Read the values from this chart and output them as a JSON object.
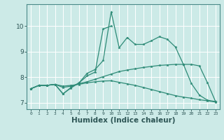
{
  "bg_color": "#cceae7",
  "grid_color": "#ffffff",
  "line_color": "#2e8b77",
  "xlabel": "Humidex (Indice chaleur)",
  "xlabel_fontsize": 7.5,
  "xlim": [
    -0.5,
    23.5
  ],
  "ylim": [
    6.75,
    10.85
  ],
  "xticks": [
    0,
    1,
    2,
    3,
    4,
    5,
    6,
    7,
    8,
    9,
    10,
    11,
    12,
    13,
    14,
    15,
    16,
    17,
    18,
    19,
    20,
    21,
    22,
    23
  ],
  "yticks": [
    7,
    8,
    9,
    10
  ],
  "series": [
    [
      7.55,
      7.68,
      7.68,
      7.72,
      7.35,
      7.6,
      7.78,
      8.15,
      8.3,
      8.65,
      10.55,
      9.15,
      9.55,
      9.28,
      9.28,
      9.42,
      9.58,
      9.48,
      9.18,
      8.5,
      7.75,
      7.3,
      7.1,
      7.05
    ],
    [
      7.55,
      7.68,
      7.68,
      7.72,
      7.35,
      7.58,
      7.78,
      8.05,
      8.2,
      9.88,
      10.0,
      null,
      null,
      null,
      null,
      null,
      null,
      null,
      null,
      null,
      null,
      null,
      null,
      null
    ],
    [
      7.55,
      7.68,
      7.68,
      7.72,
      7.6,
      7.65,
      7.75,
      7.82,
      7.92,
      8.02,
      8.12,
      8.22,
      8.28,
      8.33,
      8.38,
      8.42,
      8.46,
      8.48,
      8.5,
      8.5,
      8.5,
      8.44,
      7.78,
      7.05
    ],
    [
      7.55,
      7.68,
      7.68,
      7.72,
      7.65,
      7.68,
      7.72,
      7.78,
      7.82,
      7.85,
      7.86,
      7.8,
      7.74,
      7.68,
      7.6,
      7.52,
      7.44,
      7.36,
      7.28,
      7.22,
      7.18,
      7.12,
      7.08,
      7.03
    ]
  ]
}
